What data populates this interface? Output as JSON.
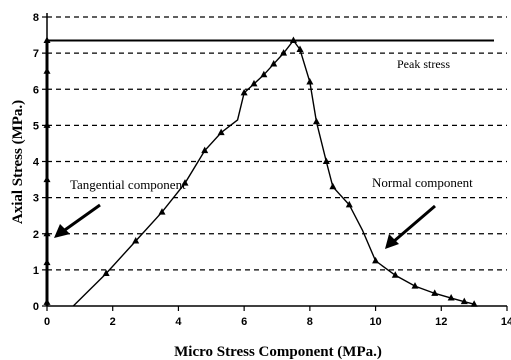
{
  "chart_data": {
    "type": "line",
    "xlabel": "Micro Stress Component (MPa.)",
    "ylabel": "Axial Stress (MPa.)",
    "xlim": [
      0,
      14
    ],
    "ylim": [
      0,
      8
    ],
    "xticks": [
      "0",
      "2",
      "4",
      "6",
      "8",
      "10",
      "12",
      "14"
    ],
    "yticks": [
      "0",
      "1",
      "2",
      "3",
      "4",
      "5",
      "6",
      "7",
      "8"
    ],
    "grid": "horizontal dashed",
    "peak_stress": 7.35,
    "annotations": {
      "peak": "Peak stress",
      "tangential": "Tangential component",
      "normal": "Normal component"
    },
    "series": [
      {
        "values": [
          [
            0.8,
            0
          ],
          [
            1.8,
            0.9
          ],
          [
            2.7,
            1.8
          ],
          [
            3.5,
            2.6
          ],
          [
            4.2,
            3.4
          ],
          [
            4.8,
            4.3
          ],
          [
            5.3,
            4.8
          ],
          [
            5.8,
            5.15
          ],
          [
            6.0,
            5.9
          ],
          [
            6.3,
            6.15
          ],
          [
            6.6,
            6.4
          ],
          [
            6.9,
            6.7
          ],
          [
            7.2,
            7.0
          ],
          [
            7.5,
            7.35
          ],
          [
            7.7,
            7.1
          ],
          [
            8.0,
            6.2
          ],
          [
            8.2,
            5.1
          ],
          [
            8.5,
            4.0
          ],
          [
            8.7,
            3.3
          ],
          [
            9.2,
            2.8
          ],
          [
            9.6,
            2.1
          ],
          [
            10.0,
            1.25
          ],
          [
            10.6,
            0.85
          ],
          [
            11.2,
            0.55
          ],
          [
            11.8,
            0.35
          ],
          [
            12.3,
            0.22
          ],
          [
            12.7,
            0.12
          ],
          [
            13.0,
            0.05
          ]
        ],
        "markers": [
          [
            1.8,
            0.9
          ],
          [
            2.7,
            1.8
          ],
          [
            3.5,
            2.6
          ],
          [
            4.2,
            3.4
          ],
          [
            4.8,
            4.3
          ],
          [
            5.3,
            4.8
          ],
          [
            6.0,
            5.9
          ],
          [
            6.3,
            6.15
          ],
          [
            6.6,
            6.4
          ],
          [
            6.9,
            6.7
          ],
          [
            7.2,
            7.0
          ],
          [
            7.5,
            7.35
          ],
          [
            7.7,
            7.1
          ],
          [
            8.0,
            6.2
          ],
          [
            8.2,
            5.1
          ],
          [
            8.5,
            4.0
          ],
          [
            8.7,
            3.3
          ],
          [
            9.2,
            2.8
          ],
          [
            10.0,
            1.25
          ],
          [
            10.6,
            0.85
          ],
          [
            11.2,
            0.55
          ],
          [
            11.8,
            0.35
          ],
          [
            12.3,
            0.22
          ],
          [
            12.7,
            0.12
          ],
          [
            13.0,
            0.05
          ]
        ]
      },
      {
        "values": [
          [
            0,
            0
          ],
          [
            0,
            0.5
          ],
          [
            0,
            1.2
          ],
          [
            0,
            2.0
          ],
          [
            0,
            2.8
          ],
          [
            0,
            3.5
          ],
          [
            0,
            4.3
          ],
          [
            0,
            5.0
          ],
          [
            0,
            5.7
          ],
          [
            0,
            6.5
          ],
          [
            0,
            7.35
          ]
        ],
        "markers": [
          [
            0,
            0.1
          ],
          [
            0,
            1.2
          ],
          [
            0,
            2.0
          ],
          [
            0,
            3.5
          ],
          [
            0,
            5.0
          ],
          [
            0,
            6.5
          ],
          [
            0,
            7.35
          ]
        ]
      }
    ]
  }
}
